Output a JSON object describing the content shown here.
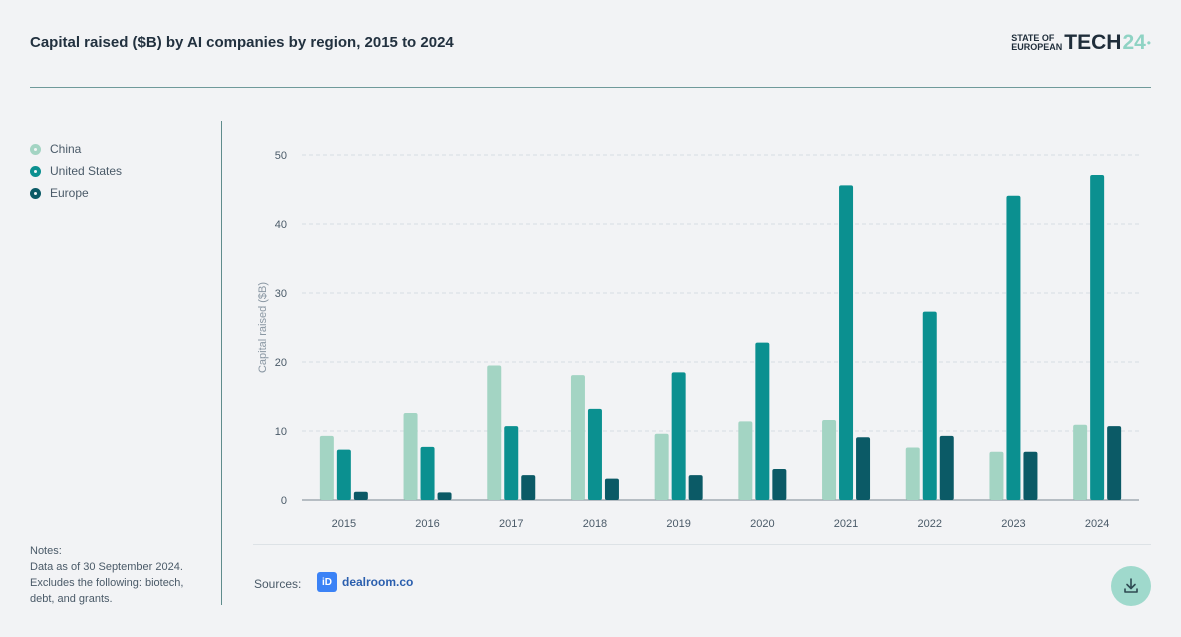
{
  "header": {
    "title": "Capital raised ($B) by AI companies by region, 2015 to 2024",
    "brand_small_line1": "STATE OF",
    "brand_small_line2": "EUROPEAN",
    "brand_big": "TECH",
    "brand_num": "24"
  },
  "legend": [
    {
      "label": "China",
      "color": "#a3d4c3"
    },
    {
      "label": "United States",
      "color": "#0b9090"
    },
    {
      "label": "Europe",
      "color": "#0b5a66"
    }
  ],
  "notes": {
    "heading": "Notes:",
    "line1": "Data as of 30 September 2024.",
    "line2": "Excludes the following: biotech, debt, and grants."
  },
  "sources": {
    "label": "Sources:",
    "logo_text": "dealroom.co",
    "logo_mark": "iD"
  },
  "download": {
    "icon": "download-icon"
  },
  "chart_data": {
    "type": "bar",
    "title": "Capital raised ($B) by AI companies by region, 2015 to 2024",
    "xlabel": "",
    "ylabel": "Capital raised ($B)",
    "ylim": [
      0,
      50
    ],
    "yticks": [
      0,
      10,
      20,
      30,
      40,
      50
    ],
    "grid": true,
    "legend_position": "left",
    "categories": [
      "2015",
      "2016",
      "2017",
      "2018",
      "2019",
      "2020",
      "2021",
      "2022",
      "2023",
      "2024"
    ],
    "series": [
      {
        "name": "China",
        "color": "#a3d4c3",
        "values": [
          9.3,
          12.6,
          19.5,
          18.1,
          9.6,
          11.4,
          11.6,
          7.6,
          7.0,
          10.9
        ]
      },
      {
        "name": "United States",
        "color": "#0b9090",
        "values": [
          7.3,
          7.7,
          10.7,
          13.2,
          18.5,
          22.8,
          45.6,
          27.3,
          44.1,
          47.1
        ]
      },
      {
        "name": "Europe",
        "color": "#0b5a66",
        "values": [
          1.2,
          1.1,
          3.6,
          3.1,
          3.6,
          4.5,
          9.1,
          9.3,
          7.0,
          10.7
        ]
      }
    ]
  }
}
